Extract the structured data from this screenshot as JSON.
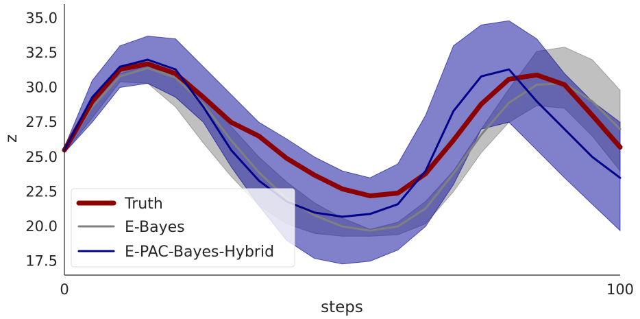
{
  "chart_data": {
    "type": "line",
    "xlabel": "steps",
    "ylabel": "z",
    "xlim": [
      0,
      100
    ],
    "ylim": [
      16.5,
      36.0
    ],
    "x_ticks": [
      "0",
      "100"
    ],
    "y_ticks": [
      "17.5",
      "20.0",
      "22.5",
      "25.0",
      "27.5",
      "30.0",
      "32.5",
      "35.0"
    ],
    "grid": false,
    "legend_position": "lower-left",
    "x": [
      0,
      5,
      10,
      15,
      20,
      25,
      30,
      35,
      40,
      45,
      50,
      55,
      60,
      65,
      70,
      75,
      80,
      85,
      90,
      95,
      100
    ],
    "series": [
      {
        "name": "Truth",
        "color": "#8b0000",
        "values": [
          25.5,
          29.0,
          31.3,
          31.7,
          31.0,
          29.3,
          27.5,
          26.5,
          24.9,
          23.7,
          22.7,
          22.2,
          22.4,
          23.8,
          26.2,
          28.8,
          30.6,
          30.9,
          30.2,
          28.0,
          25.7
        ]
      },
      {
        "name": "E-Bayes",
        "color": "#808080",
        "band_lower": [
          25.3,
          27.8,
          30.4,
          30.3,
          28.6,
          26.0,
          23.6,
          21.5,
          20.2,
          19.5,
          19.3,
          19.3,
          19.4,
          20.2,
          22.5,
          25.3,
          27.5,
          28.7,
          28.5,
          26.5,
          24.0
        ],
        "band_upper": [
          25.7,
          29.0,
          31.0,
          31.6,
          30.6,
          29.2,
          27.2,
          25.0,
          23.2,
          21.7,
          20.6,
          19.8,
          20.3,
          21.8,
          24.0,
          27.0,
          29.9,
          32.6,
          32.9,
          32.0,
          29.8
        ],
        "values": [
          25.5,
          28.6,
          30.8,
          31.4,
          30.7,
          28.8,
          26.2,
          23.9,
          22.0,
          20.8,
          20.0,
          19.7,
          20.0,
          21.3,
          23.8,
          26.6,
          28.9,
          30.2,
          30.3,
          29.0,
          27.0
        ]
      },
      {
        "name": "E-PAC-Bayes-Hybrid",
        "color": "#00008b",
        "band_lower": [
          25.3,
          27.5,
          30.0,
          30.3,
          29.3,
          27.5,
          24.3,
          21.5,
          19.0,
          17.7,
          17.3,
          17.5,
          18.3,
          20.0,
          23.0,
          27.0,
          27.5,
          25.5,
          23.5,
          21.6,
          19.7
        ],
        "band_upper": [
          25.7,
          30.5,
          33.0,
          33.7,
          33.5,
          31.5,
          29.5,
          27.5,
          26.3,
          25.0,
          24.0,
          23.5,
          24.5,
          28.0,
          33.0,
          34.5,
          34.8,
          33.5,
          31.0,
          29.0,
          27.5
        ],
        "values": [
          25.5,
          29.3,
          31.5,
          32.0,
          31.3,
          28.6,
          25.5,
          23.3,
          21.8,
          21.0,
          20.7,
          20.9,
          21.6,
          24.0,
          28.3,
          30.8,
          31.3,
          29.0,
          27.0,
          25.0,
          23.5
        ]
      }
    ]
  }
}
